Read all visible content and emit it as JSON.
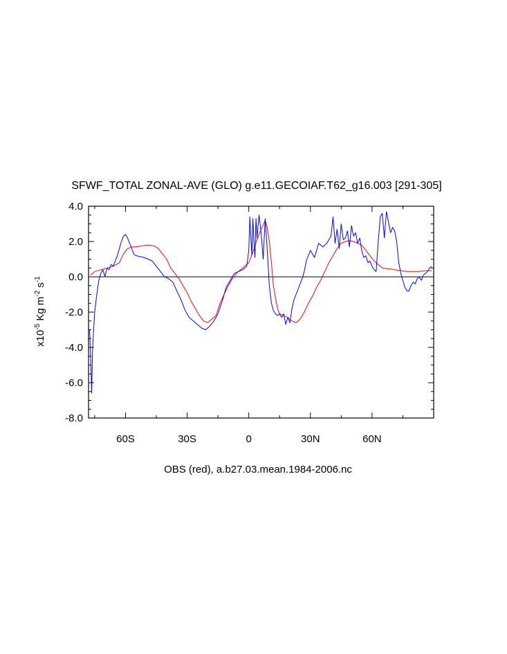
{
  "chart_data": {
    "type": "line",
    "title": "SFWF_TOTAL ZONAL-AVE (GLO) g.e11.GECOIAF.T62_g16.003 [291-305]",
    "xlabel": "OBS (red), a.b27.03.mean.1984-2006.nc",
    "ylabel": {
      "prefix": "x10",
      "exp": "-5",
      "unit": " Kg m",
      "unit_exp": "-2",
      "unit2": " s",
      "unit2_exp": "-1"
    },
    "xlim": [
      -78,
      90
    ],
    "ylim": [
      -8.0,
      4.0
    ],
    "x_ticks": [
      {
        "value": -60,
        "label": "60S"
      },
      {
        "value": -30,
        "label": "30S"
      },
      {
        "value": 0,
        "label": "0"
      },
      {
        "value": 30,
        "label": "30N"
      },
      {
        "value": 60,
        "label": "60N"
      }
    ],
    "y_ticks": [
      {
        "value": 4.0,
        "label": "4.0"
      },
      {
        "value": 2.0,
        "label": "2.0"
      },
      {
        "value": 0.0,
        "label": "0.0"
      },
      {
        "value": -2.0,
        "label": "-2.0"
      },
      {
        "value": -4.0,
        "label": "-4.0"
      },
      {
        "value": -6.0,
        "label": "-6.0"
      },
      {
        "value": -8.0,
        "label": "-8.0"
      }
    ],
    "reference_line": 0,
    "series": [
      {
        "color": "#ff0000",
        "x": [
          -77,
          -75,
          -72,
          -69,
          -66,
          -63,
          -61,
          -59,
          -57,
          -55,
          -52,
          -49,
          -46,
          -44,
          -42,
          -40,
          -38,
          -36,
          -34,
          -32,
          -30,
          -28,
          -26,
          -24,
          -22,
          -20,
          -18,
          -16,
          -14,
          -12,
          -10,
          -8,
          -6,
          -4,
          -2,
          0,
          2,
          4,
          6,
          8,
          9,
          10,
          11,
          12,
          13,
          14,
          15,
          17,
          19,
          21,
          23,
          25,
          27,
          29,
          31,
          33,
          35,
          37,
          39,
          41,
          43,
          45,
          47,
          49,
          51,
          53,
          55,
          57,
          59,
          61,
          63,
          65,
          68,
          71,
          74,
          77,
          80,
          83,
          86,
          89
        ],
        "y": [
          0.1,
          0.3,
          0.4,
          0.5,
          0.6,
          0.8,
          1.3,
          1.6,
          1.7,
          1.7,
          1.75,
          1.8,
          1.75,
          1.6,
          1.3,
          1.0,
          0.5,
          0.2,
          -0.1,
          -0.5,
          -0.9,
          -1.4,
          -1.8,
          -2.2,
          -2.5,
          -2.6,
          -2.4,
          -2.2,
          -1.5,
          -1.0,
          -0.5,
          -0.1,
          0.2,
          0.4,
          0.6,
          0.8,
          1.4,
          2.1,
          2.7,
          3.2,
          2.8,
          2.0,
          0.8,
          -0.5,
          -1.2,
          -1.8,
          -2.1,
          -2.2,
          -2.3,
          -2.5,
          -2.6,
          -2.4,
          -2.0,
          -1.5,
          -1.1,
          -0.6,
          -0.2,
          0.3,
          0.8,
          1.2,
          1.6,
          1.9,
          2.0,
          2.05,
          2.0,
          1.9,
          1.8,
          1.5,
          1.2,
          0.9,
          0.7,
          0.5,
          0.45,
          0.4,
          0.35,
          0.3,
          0.3,
          0.3,
          0.35,
          0.35
        ]
      },
      {
        "color": "#0000ff",
        "x": [
          -77.5,
          -77,
          -76.5,
          -76,
          -75,
          -74,
          -73,
          -72,
          -71,
          -70,
          -69,
          -68,
          -67,
          -66,
          -65,
          -64,
          -63,
          -62,
          -61,
          -60,
          -59,
          -58,
          -57,
          -56,
          -55,
          -53,
          -51,
          -49,
          -47,
          -45,
          -43,
          -41,
          -39,
          -37,
          -35,
          -33,
          -31,
          -29,
          -27,
          -25,
          -23,
          -21,
          -19,
          -17,
          -15,
          -13,
          -11,
          -9,
          -7,
          -5,
          -3,
          -1,
          0,
          0.5,
          1,
          1.5,
          2,
          2.5,
          3,
          3.5,
          4,
          5,
          6,
          7,
          8,
          9,
          10,
          11,
          12,
          13,
          14,
          15,
          16,
          17,
          18,
          19,
          20,
          21,
          22,
          23,
          24,
          25,
          26,
          27,
          28,
          30,
          32,
          34,
          36,
          38,
          40,
          41,
          42,
          43,
          44,
          45,
          46,
          47,
          48,
          49,
          50,
          51,
          52,
          53,
          54,
          55,
          56,
          57,
          58,
          59,
          60,
          61,
          62,
          63,
          64,
          65,
          66,
          67,
          68,
          69,
          70,
          71,
          72,
          73,
          74,
          75,
          76,
          77,
          78,
          79,
          80,
          81,
          82,
          83,
          84,
          85,
          86,
          87,
          88,
          89
        ],
        "y": [
          -3.0,
          -4.5,
          -6.6,
          -4.0,
          -2.0,
          -1.0,
          -0.2,
          0.2,
          0.4,
          0.0,
          0.5,
          0.4,
          0.7,
          0.6,
          0.9,
          1.2,
          1.6,
          2.0,
          2.3,
          2.4,
          2.2,
          1.9,
          1.6,
          1.3,
          1.2,
          1.15,
          1.1,
          1.0,
          0.9,
          0.6,
          0.3,
          0.0,
          -0.1,
          -0.3,
          -0.8,
          -1.3,
          -1.9,
          -2.3,
          -2.5,
          -2.7,
          -2.9,
          -3.0,
          -2.8,
          -2.5,
          -2.1,
          -1.4,
          -0.6,
          -0.2,
          0.2,
          0.3,
          0.4,
          0.6,
          1.5,
          3.4,
          2.3,
          1.2,
          3.3,
          2.0,
          1.1,
          3.3,
          2.2,
          3.5,
          2.5,
          1.0,
          3.3,
          1.5,
          -0.5,
          -1.5,
          -1.9,
          -2.1,
          -2.2,
          -2.1,
          -2.3,
          -2.1,
          -2.7,
          -2.3,
          -2.6,
          -1.8,
          -1.3,
          -1.0,
          -0.7,
          -0.4,
          -0.1,
          0.3,
          0.9,
          1.5,
          1.1,
          1.9,
          1.7,
          1.9,
          2.3,
          3.4,
          1.9,
          2.7,
          1.6,
          3.0,
          2.1,
          2.2,
          2.6,
          1.7,
          2.9,
          2.3,
          2.5,
          1.9,
          2.2,
          1.5,
          1.1,
          1.2,
          0.8,
          0.9,
          0.6,
          0.4,
          0.3,
          2.0,
          3.4,
          3.6,
          2.2,
          3.7,
          3.1,
          2.5,
          2.8,
          2.6,
          2.0,
          0.8,
          0.2,
          -0.2,
          -0.6,
          -0.8,
          -0.8,
          -0.5,
          -0.3,
          -0.4,
          -0.1,
          0.0,
          -0.2,
          0.1,
          0.2,
          0.3,
          0.5,
          0.6
        ]
      }
    ]
  }
}
